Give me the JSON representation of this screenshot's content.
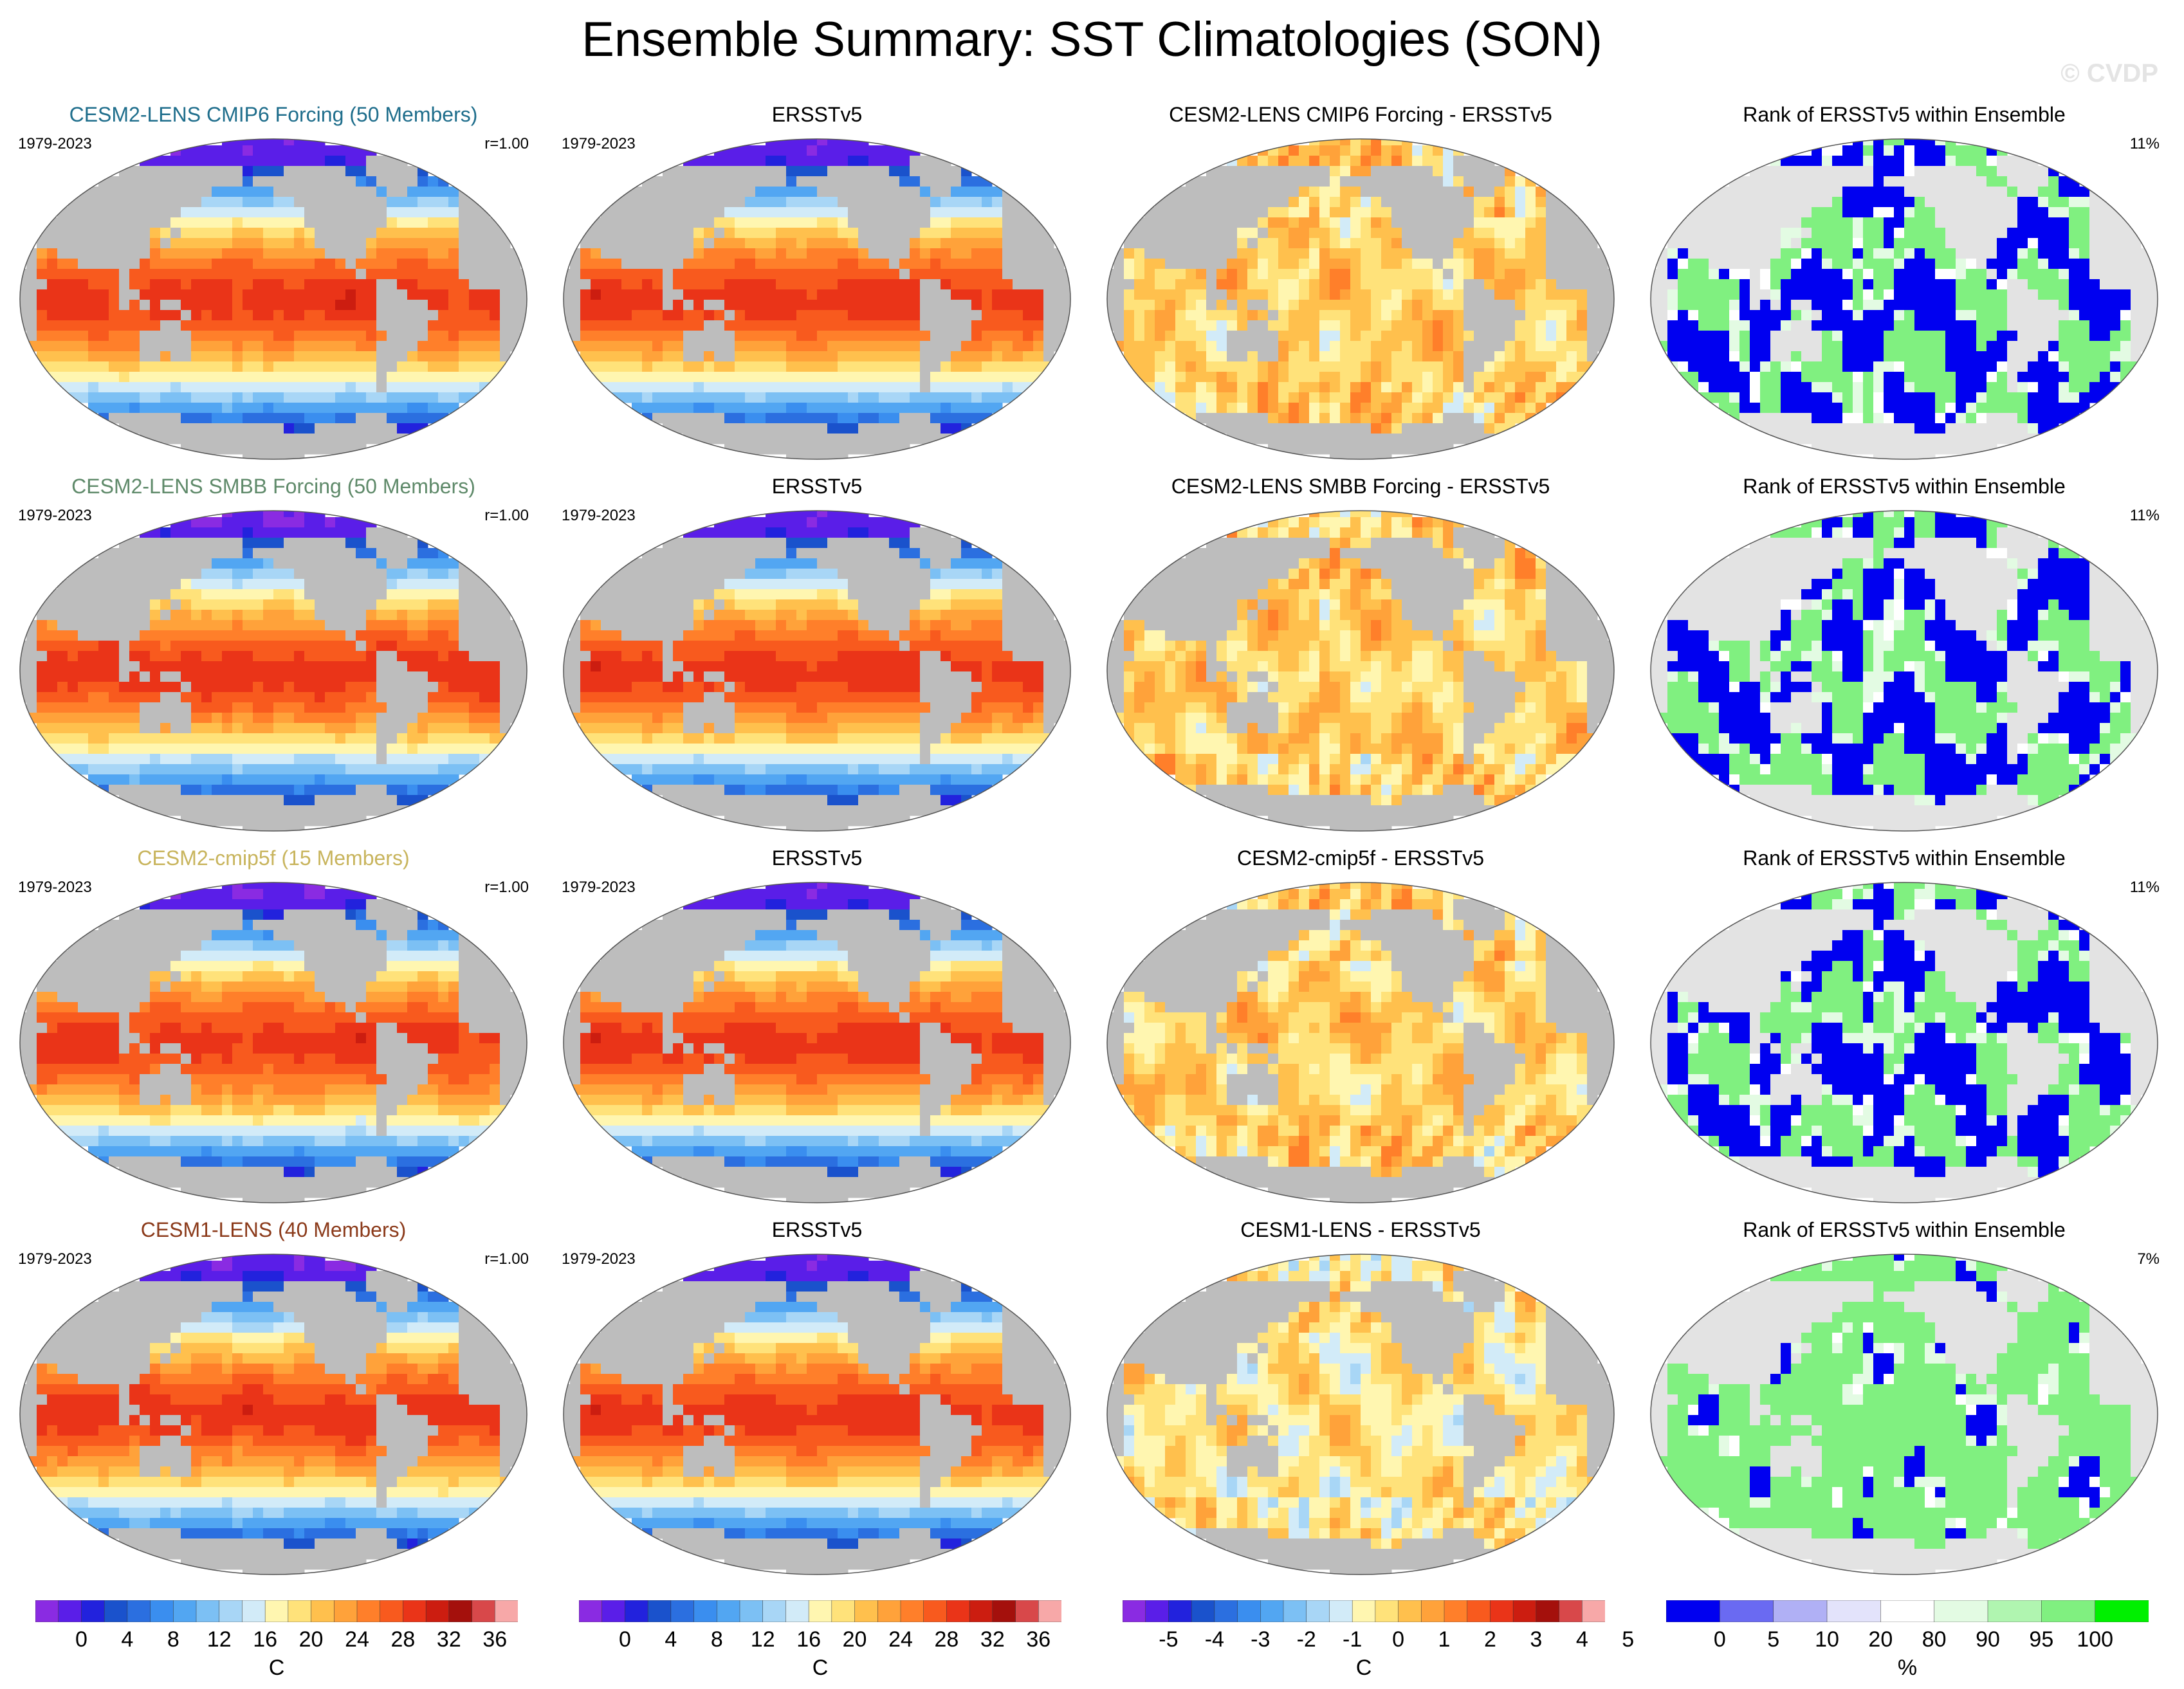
{
  "title": "Ensemble Summary: SST Climatologies (SON)",
  "watermark": "© CVDP",
  "colors": {
    "land": "#bdbdbd",
    "rank_land": "#e3e3e3",
    "row_title_colors": [
      "#1f6e8c",
      "#5f8a6a",
      "#c8b45c",
      "#8b3a1a"
    ]
  },
  "rows": [
    {
      "model_title": "CESM2-LENS CMIP6 Forcing (50 Members)",
      "years": "1979-2023",
      "corr": "r=1.00",
      "obs_title": "ERSSTv5",
      "obs_years": "1979-2023",
      "diff_title": "CESM2-LENS CMIP6 Forcing - ERSSTv5",
      "rank_title": "Rank of ERSSTv5 within Ensemble",
      "rank_pct": "11%"
    },
    {
      "model_title": "CESM2-LENS SMBB Forcing (50 Members)",
      "years": "1979-2023",
      "corr": "r=1.00",
      "obs_title": "ERSSTv5",
      "obs_years": "1979-2023",
      "diff_title": "CESM2-LENS SMBB Forcing - ERSSTv5",
      "rank_title": "Rank of ERSSTv5 within Ensemble",
      "rank_pct": "11%"
    },
    {
      "model_title": "CESM2-cmip5f (15 Members)",
      "years": "1979-2023",
      "corr": "r=1.00",
      "obs_title": "ERSSTv5",
      "obs_years": "1979-2023",
      "diff_title": "CESM2-cmip5f - ERSSTv5",
      "rank_title": "Rank of ERSSTv5 within Ensemble",
      "rank_pct": "11%"
    },
    {
      "model_title": "CESM1-LENS (40 Members)",
      "years": "1979-2023",
      "corr": "r=1.00",
      "obs_title": "ERSSTv5",
      "obs_years": "1979-2023",
      "diff_title": "CESM1-LENS - ERSSTv5",
      "rank_title": "Rank of ERSSTv5 within Ensemble",
      "rank_pct": "7%"
    }
  ],
  "chart_data": [
    {
      "type": "heatmap",
      "name": "sst-climatology-colorbar",
      "unit": "C",
      "levels": [
        -2,
        0,
        2,
        4,
        6,
        8,
        10,
        12,
        14,
        16,
        18,
        20,
        22,
        24,
        26,
        28,
        30,
        32,
        34,
        36,
        38
      ],
      "tick_labels": [
        "0",
        "4",
        "8",
        "12",
        "16",
        "20",
        "24",
        "28",
        "32",
        "36"
      ],
      "colors": [
        "#8a2be2",
        "#5a1ee8",
        "#2222dd",
        "#1a52cc",
        "#2b6fe0",
        "#3a8eef",
        "#52a6f2",
        "#7cc0f4",
        "#a8d6f6",
        "#d2ebf8",
        "#fff6b0",
        "#ffe27a",
        "#ffc04d",
        "#ffa23a",
        "#ff7f2a",
        "#f85a1e",
        "#ea3418",
        "#cc1d10",
        "#a4100c",
        "#d8484a",
        "#f7a8a8"
      ]
    },
    {
      "type": "heatmap",
      "name": "sst-difference-colorbar",
      "unit": "C",
      "levels": [
        -5.5,
        -5,
        -4.5,
        -4,
        -3.5,
        -3,
        -2.5,
        -2,
        -1.5,
        -1,
        -0.5,
        0,
        0.5,
        1,
        1.5,
        2,
        2.5,
        3,
        3.5,
        4,
        4.5,
        5,
        5.5
      ],
      "tick_labels": [
        "-5",
        "-4",
        "-3",
        "-2",
        "-1",
        "0",
        "1",
        "2",
        "3",
        "4",
        "5"
      ],
      "colors": [
        "#8a2be2",
        "#5a1ee8",
        "#2222dd",
        "#1a52cc",
        "#2b6fe0",
        "#3a8eef",
        "#52a6f2",
        "#7cc0f4",
        "#a8d6f6",
        "#d2ebf8",
        "#fff6b0",
        "#ffe27a",
        "#ffc04d",
        "#ffa23a",
        "#ff7f2a",
        "#f85a1e",
        "#ea3418",
        "#cc1d10",
        "#a4100c",
        "#d8484a",
        "#f7a8a8"
      ]
    },
    {
      "type": "heatmap",
      "name": "rank-colorbar",
      "unit": "%",
      "levels": [
        0,
        5,
        10,
        20,
        80,
        90,
        95,
        100
      ],
      "tick_labels": [
        "0",
        "5",
        "10",
        "20",
        "80",
        "90",
        "95",
        "100"
      ],
      "colors": [
        "#0000f0",
        "#6a6af2",
        "#b0b0f5",
        "#e3e3fb",
        "#ffffff",
        "#e3fbe3",
        "#b0f5b0",
        "#80f080",
        "#00f000"
      ]
    }
  ],
  "colorbar_units": [
    "C",
    "C",
    "C",
    "%"
  ]
}
